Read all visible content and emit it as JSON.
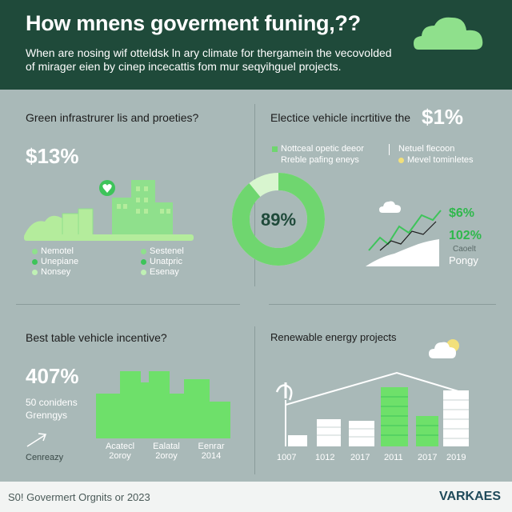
{
  "header": {
    "title": "How mnens goverment funing,??",
    "subtitle": "When are nosing wif otteldsk ln ary climate for thergamein the vecovolded of mirager eien by cinep incecattis fom mur seqyihguel projects."
  },
  "panel_tl": {
    "title": "Green infrastrurer lis and proeties?",
    "big_value": "$13%",
    "legend": [
      {
        "label": "Nemotel",
        "color": "#8fe08c"
      },
      {
        "label": "Unepiane",
        "color": "#3ec45a"
      },
      {
        "label": "Nonsey",
        "color": "#bff0b4"
      },
      {
        "label": "Sestenel",
        "color": "#8fe08c"
      },
      {
        "label": "Unatpric",
        "color": "#3ec45a"
      },
      {
        "label": "Esenay",
        "color": "#bff0b4"
      }
    ]
  },
  "panel_tr": {
    "title": "Electice vehicle incrtitive the",
    "title_value": "$1%",
    "donut_label": "89%",
    "donut_value": 89,
    "legend": [
      {
        "label": "Nottceal opetic deeor",
        "color": "#6fd66f"
      },
      {
        "label": "Rreble pafing eneys",
        "color": "#bff0b4"
      },
      {
        "label": "Netuel flecoon",
        "color": "#ffffff"
      },
      {
        "label": "Mevel tominletes",
        "color": "#f2e07a"
      }
    ],
    "stat1": "$6%",
    "stat2": "102%",
    "caption1": "Caoelt",
    "caption2": "Pongy",
    "colors": {
      "donut": "#6fd66f",
      "donut_light": "#d8f5cf"
    }
  },
  "panel_bl": {
    "title": "Best table vehicle incentive?",
    "big_value": "407%",
    "note1": "50 conidens",
    "note2": "Grenngys",
    "caption": "Cenreazy",
    "bar_labels": [
      {
        "top": "Acatecl",
        "bottom": "2oroy"
      },
      {
        "top": "Ealatal",
        "bottom": "2oroy"
      },
      {
        "top": "Eenrar",
        "bottom": "2014"
      }
    ]
  },
  "panel_br": {
    "title": "Renewable energy projects",
    "years": [
      "1007",
      "1012",
      "2017",
      "2011",
      "2017",
      "2019"
    ]
  },
  "footer": {
    "text": "S0! Govermert Orgnits or 2023",
    "logo": "VARKAES"
  }
}
